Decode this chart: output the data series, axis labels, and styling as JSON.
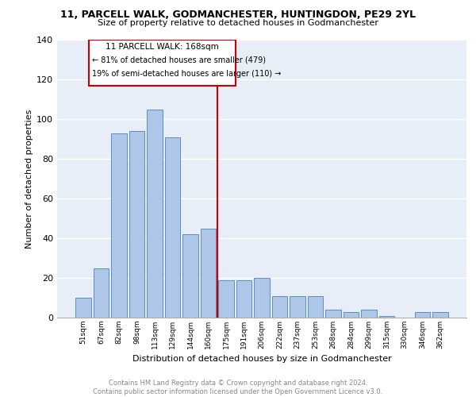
{
  "title": "11, PARCELL WALK, GODMANCHESTER, HUNTINGDON, PE29 2YL",
  "subtitle": "Size of property relative to detached houses in Godmanchester",
  "xlabel": "Distribution of detached houses by size in Godmanchester",
  "ylabel": "Number of detached properties",
  "categories": [
    "51sqm",
    "67sqm",
    "82sqm",
    "98sqm",
    "113sqm",
    "129sqm",
    "144sqm",
    "160sqm",
    "175sqm",
    "191sqm",
    "206sqm",
    "222sqm",
    "237sqm",
    "253sqm",
    "268sqm",
    "284sqm",
    "299sqm",
    "315sqm",
    "330sqm",
    "346sqm",
    "362sqm"
  ],
  "values": [
    10,
    25,
    93,
    94,
    105,
    91,
    42,
    45,
    19,
    19,
    20,
    11,
    11,
    11,
    4,
    3,
    4,
    1,
    0,
    3,
    3
  ],
  "bar_color": "#aec6e8",
  "bar_edgecolor": "#5a8fc2",
  "property_line_x": 7.5,
  "property_label": "11 PARCELL WALK: 168sqm",
  "annotation_line1": "← 81% of detached houses are smaller (479)",
  "annotation_line2": "19% of semi-detached houses are larger (110) →",
  "line_color": "#cc0000",
  "box_color": "#cc0000",
  "background_color": "#e8eef8",
  "grid_color": "#ffffff",
  "footer": "Contains HM Land Registry data © Crown copyright and database right 2024.\nContains public sector information licensed under the Open Government Licence v3.0.",
  "ylim": [
    0,
    140
  ],
  "yticks": [
    0,
    20,
    40,
    60,
    80,
    100,
    120,
    140
  ]
}
